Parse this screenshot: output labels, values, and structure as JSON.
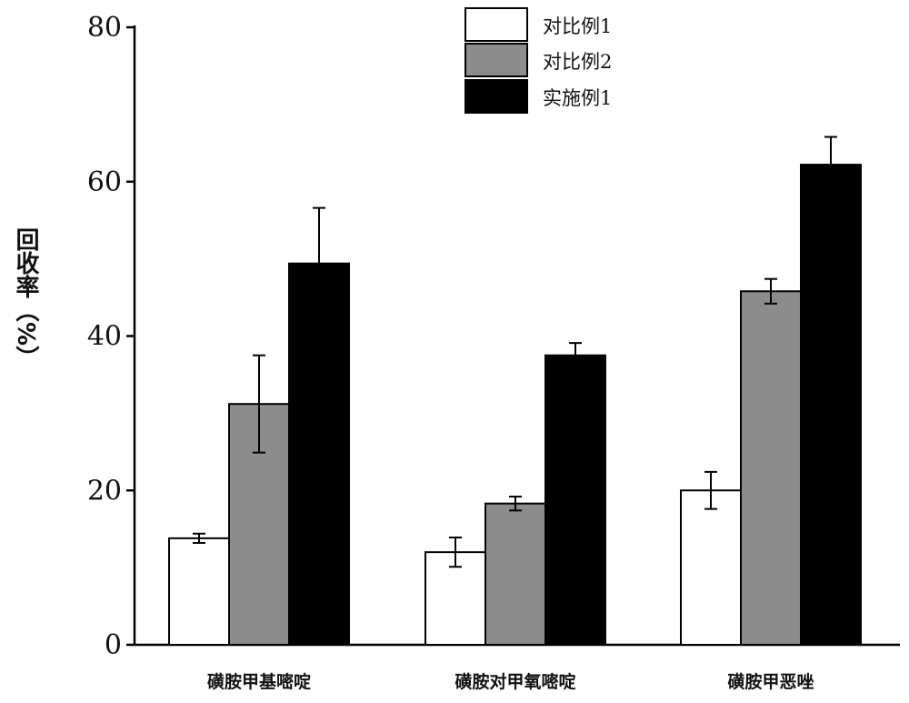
{
  "chart_data": {
    "type": "bar",
    "title": "",
    "xlabel": "",
    "ylabel": "回收率（%）",
    "ylim": [
      0,
      80
    ],
    "yticks": [
      "0",
      "20",
      "40",
      "60",
      "80"
    ],
    "categories": [
      "磺胺甲基嘧啶",
      "磺胺对甲氧嘧啶",
      "磺胺甲恶唑"
    ],
    "series": [
      {
        "name": "对比例1",
        "color": "#ffffff",
        "values": [
          13.8,
          12.0,
          20.0
        ],
        "errors": [
          0.6,
          1.9,
          2.4
        ]
      },
      {
        "name": "对比例2",
        "color": "#8c8c8c",
        "values": [
          31.2,
          18.3,
          45.8
        ],
        "errors": [
          6.3,
          0.9,
          1.6
        ]
      },
      {
        "name": "实施例1",
        "color": "#000000",
        "values": [
          49.4,
          37.5,
          62.2
        ],
        "errors": [
          7.2,
          1.6,
          3.6
        ]
      }
    ],
    "legend_position": "top-right",
    "grid": false
  }
}
